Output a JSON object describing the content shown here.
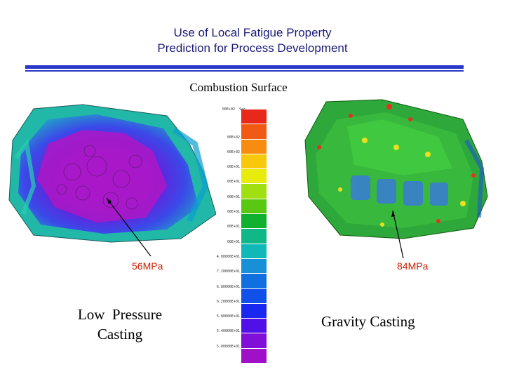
{
  "slide": {
    "title_line1": "Use of Local Fatigue Property",
    "title_line2": "Prediction for Process Development",
    "subtitle": "Combustion Surface"
  },
  "left": {
    "stress": "56MPa",
    "label_line1": "Low  Pressure",
    "label_line2": "Casting"
  },
  "right": {
    "stress": "84MPa",
    "label": "Gravity Casting"
  },
  "legend": {
    "header": "Sec",
    "colors": [
      "#e8281a",
      "#f05a14",
      "#f88c10",
      "#f8c80c",
      "#e8ec0c",
      "#a0e010",
      "#58c810",
      "#10b030",
      "#10b888",
      "#10b8b8",
      "#1890d8",
      "#1070e0",
      "#1050e8",
      "#1828f0",
      "#5010e8",
      "#8010d8",
      "#a010c8"
    ],
    "labels": [
      "00E+02",
      "00E+02",
      "00E+02",
      "00E+01",
      "00E+01",
      "00E+01",
      "00E+01",
      "00E+01",
      "00E+01",
      "4.80000E+01",
      "7.20000E+01",
      "6.80000E+01",
      "6.20000E+01",
      "5.80000E+01",
      "5.40000E+01",
      "5.00000E+01"
    ]
  }
}
